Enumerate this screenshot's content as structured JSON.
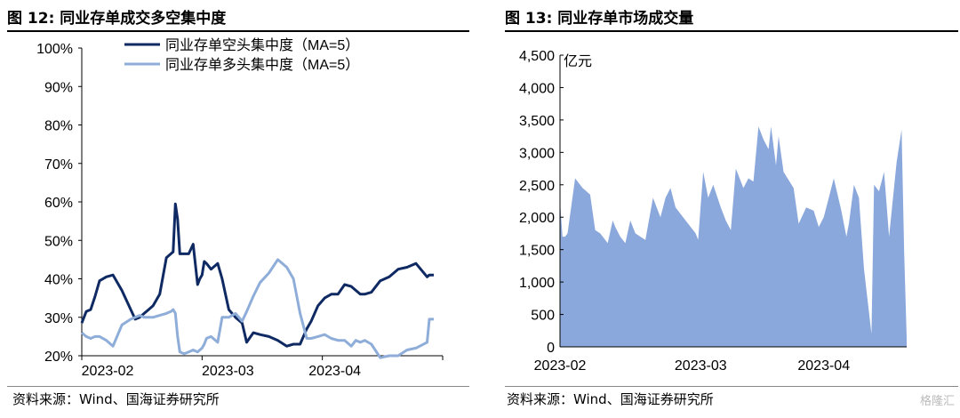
{
  "left": {
    "title": "图 12:  同业存单成交多空集中度",
    "source": "资料来源：Wind、国海证券研究所"
  },
  "right": {
    "title": "图 13:  同业存单市场成交量",
    "source": "资料来源：Wind、国海证券研究所"
  },
  "watermark": "格隆汇",
  "chart_data": [
    {
      "type": "line",
      "title": "同业存单成交多空集中度",
      "x": [
        0,
        2,
        4,
        6,
        8,
        11,
        14,
        18,
        22,
        24,
        26,
        28,
        30,
        32,
        35,
        38,
        40,
        41,
        42,
        43,
        44,
        46,
        48,
        50,
        52,
        53,
        54,
        55,
        56,
        58,
        61,
        63,
        66,
        69,
        72,
        74,
        77,
        80,
        84,
        88,
        92,
        95,
        98,
        101,
        103,
        106,
        109,
        112,
        115,
        118,
        121,
        123,
        125,
        127,
        130,
        134,
        138,
        142,
        146,
        150,
        155,
        156,
        158
      ],
      "series": [
        {
          "name": "同业存单空头集中度（MA=5）",
          "color": "#0f2a63",
          "values": [
            28.5,
            31.5,
            32,
            35.5,
            39.5,
            40.5,
            41,
            37,
            32,
            29.5,
            30,
            31,
            32,
            33,
            36,
            45.5,
            46.5,
            47,
            59.5,
            55.5,
            46.5,
            46.5,
            46.5,
            49,
            38.5,
            40,
            41,
            44.5,
            44,
            42.5,
            44,
            40,
            32,
            30,
            28.5,
            23.5,
            26,
            25.5,
            25,
            24,
            22.5,
            23,
            23,
            27,
            29,
            33,
            35,
            36,
            36,
            38.5,
            38,
            37,
            36,
            36,
            36.5,
            39.5,
            40.5,
            42.5,
            43,
            44,
            40.5,
            41,
            41
          ]
        },
        {
          "name": "同业存单多头集中度（MA=5）",
          "color": "#8fadd9",
          "values": [
            26,
            25,
            24.5,
            25,
            25,
            24,
            22.5,
            28,
            29.5,
            30,
            30.5,
            30,
            30,
            30,
            30.5,
            31,
            31.5,
            32,
            31,
            25,
            21,
            20.5,
            21,
            21.5,
            21,
            21.5,
            22,
            23,
            24.5,
            25,
            23.5,
            30,
            30,
            31,
            29,
            31.5,
            35.5,
            39,
            41.5,
            45,
            43,
            40,
            31,
            24.5,
            24.5,
            25,
            25.5,
            24.5,
            24,
            24,
            22.5,
            24,
            23.5,
            24,
            23,
            19.5,
            20,
            20,
            21.5,
            22,
            23.5,
            29.5,
            29.5
          ]
        }
      ],
      "xticks": [
        "2023-02",
        "2023-03",
        "2023-04"
      ],
      "xtick_positions": [
        2,
        56,
        104
      ],
      "xlim": [
        0,
        162
      ],
      "ylim": [
        20,
        100
      ],
      "yticks": [
        "20%",
        "30%",
        "40%",
        "50%",
        "60%",
        "70%",
        "80%",
        "90%",
        "100%"
      ],
      "ytick_values": [
        20,
        30,
        40,
        50,
        60,
        70,
        80,
        90,
        100
      ],
      "legend": "top-center"
    },
    {
      "type": "area",
      "title": "同业存单市场成交量",
      "unit_label": "亿元",
      "color": "#8ba8dc",
      "x": [
        0,
        1,
        2,
        3,
        6,
        9,
        12,
        14,
        16,
        19,
        21,
        22,
        24,
        26,
        28,
        30,
        32,
        34,
        37,
        40,
        42,
        44,
        46,
        50,
        52,
        54,
        55,
        57,
        59,
        61,
        64,
        66,
        68,
        70,
        73,
        75,
        77,
        79,
        81,
        83,
        84,
        86,
        87,
        89,
        93,
        95,
        98,
        101,
        103,
        105,
        107,
        109,
        112,
        114,
        115,
        117,
        119,
        121,
        124,
        125,
        127,
        129,
        131,
        134,
        136,
        137,
        138
      ],
      "values": [
        2250,
        1700,
        1700,
        1750,
        2600,
        2450,
        2350,
        1800,
        1750,
        1600,
        1950,
        1850,
        1700,
        1600,
        1950,
        1750,
        1700,
        1650,
        2300,
        2000,
        2300,
        2450,
        2150,
        1950,
        1850,
        1750,
        1650,
        2700,
        2300,
        2500,
        2150,
        1950,
        1800,
        2750,
        2450,
        2600,
        2550,
        3400,
        3200,
        3050,
        3400,
        2800,
        3250,
        2700,
        2450,
        1900,
        2150,
        2100,
        1850,
        2000,
        2300,
        2600,
        2100,
        1700,
        1900,
        2500,
        2300,
        1200,
        200,
        2500,
        2400,
        2700,
        1700,
        2850,
        3350,
        1450,
        150
      ],
      "xticks": [
        "2023-02",
        "2023-03",
        "2023-04"
      ],
      "xtick_positions": [
        0,
        56,
        105
      ],
      "xlim": [
        0,
        138
      ],
      "ylim": [
        0,
        4500
      ],
      "yticks": [
        "0",
        "500",
        "1,000",
        "1,500",
        "2,000",
        "2,500",
        "3,000",
        "3,500",
        "4,000",
        "4,500"
      ],
      "ytick_values": [
        0,
        500,
        1000,
        1500,
        2000,
        2500,
        3000,
        3500,
        4000,
        4500
      ]
    }
  ]
}
